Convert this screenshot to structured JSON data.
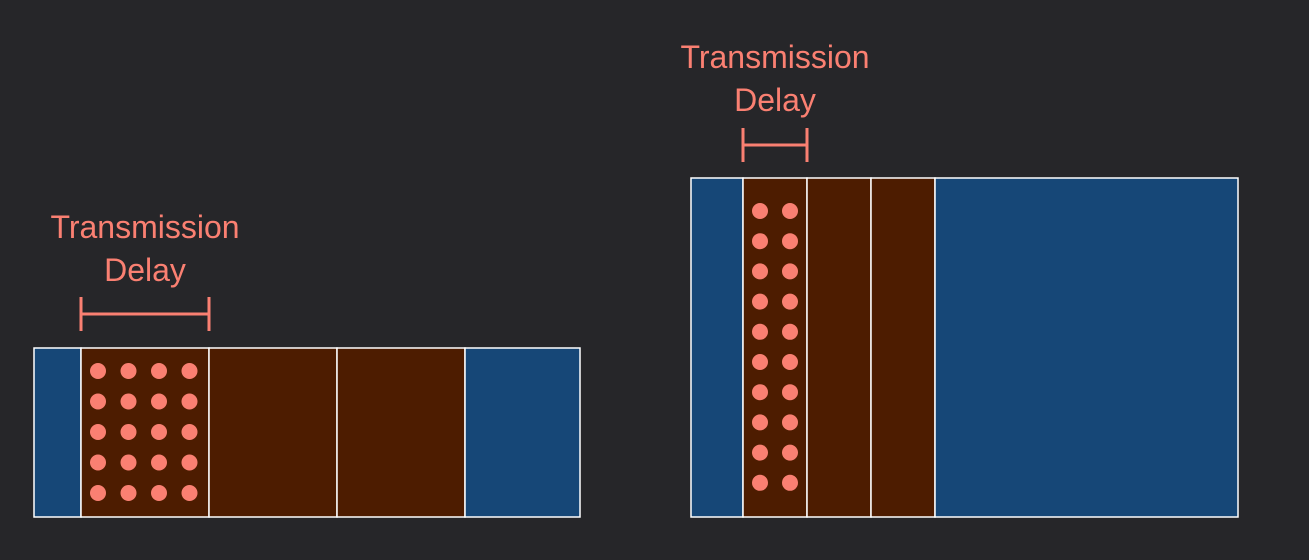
{
  "colors": {
    "background": "#262629",
    "blue_region": "#164777",
    "brown_region": "#4D1C00",
    "border": "#FFFFFF",
    "accent": "#FA8072"
  },
  "left_diagram": {
    "label_line1": "Transmission",
    "label_line2": "Delay",
    "packet_columns": 4,
    "packet_rows": 5,
    "brown_segments": 3
  },
  "right_diagram": {
    "label_line1": "Transmission",
    "label_line2": "Delay",
    "packet_columns": 2,
    "packet_rows": 10,
    "brown_segments": 3
  }
}
